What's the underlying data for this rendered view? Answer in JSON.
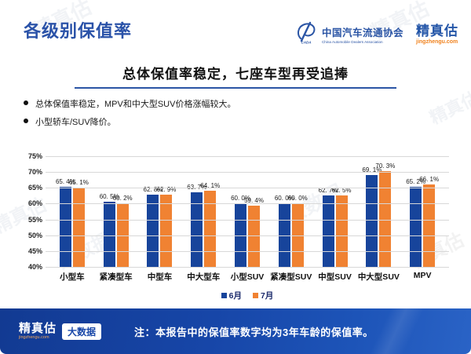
{
  "header": {
    "title": "各级别保值率",
    "cada": {
      "name_cn": "中国汽车流通协会",
      "name_en": "China Automobile Dealers Association"
    },
    "jzg": {
      "name": "精真估",
      "domain": "jingzhengu.com"
    }
  },
  "subtitle": "总体保值率稳定，七座车型再受追捧",
  "bullets": [
    "总体保值率稳定，MPV和中大型SUV价格涨幅较大。",
    "小型轿车/SUV降价。"
  ],
  "chart_data": {
    "type": "bar",
    "categories": [
      "小型车",
      "紧凑型车",
      "中型车",
      "中大型车",
      "小型SUV",
      "紧凑型SUV",
      "中型SUV",
      "中大型SUV",
      "MPV"
    ],
    "series": [
      {
        "name": "6月",
        "color": "#17449B",
        "values": [
          65.4,
          60.5,
          62.8,
          63.7,
          60.0,
          60.0,
          62.7,
          69.1,
          65.2
        ]
      },
      {
        "name": "7月",
        "color": "#F08232",
        "values": [
          65.1,
          60.2,
          62.9,
          64.1,
          59.4,
          60.0,
          62.5,
          70.3,
          66.1
        ]
      }
    ],
    "title": "",
    "xlabel": "",
    "ylabel": "",
    "ylim": [
      40,
      75
    ],
    "ytick_step": 5,
    "yticks": [
      "75%",
      "70%",
      "65%",
      "60%",
      "55%",
      "50%",
      "45%",
      "40%"
    ],
    "grid": "horizontal",
    "legend_position": "bottom",
    "value_label_suffix": "%"
  },
  "footer": {
    "logo_name": "精真估",
    "logo_domain": "jingzhengu.com",
    "logo_badge": "大数据",
    "note": "注：本报告中的保值率数字均为3年车龄的保值率。"
  },
  "watermark": {
    "brand": "精真估",
    "brand_domain": "jingzhengu.com",
    "tag": "大数据"
  },
  "colors": {
    "title_blue": "#2A52A8",
    "rule_blue": "#2B55A5",
    "bar_june": "#17449B",
    "bar_july": "#F08232",
    "footer_blue": "#1746A8",
    "domain_orange": "#F0821E"
  }
}
